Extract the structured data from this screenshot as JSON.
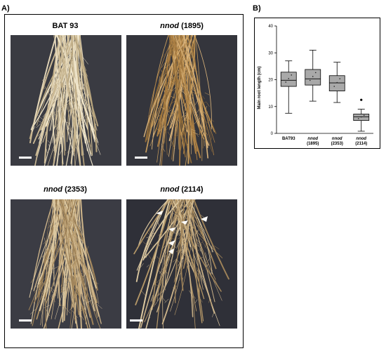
{
  "figure": {
    "panel_a_label": "A)",
    "panel_b_label": "B)"
  },
  "photos": [
    {
      "title_italic": "",
      "title_plain": "BAT 93"
    },
    {
      "title_italic": "nnod",
      "title_plain": " (1895)"
    },
    {
      "title_italic": "nnod",
      "title_plain": " (2353)"
    },
    {
      "title_italic": "nnod",
      "title_plain": " (2114)"
    }
  ],
  "colors": {
    "photo_background": "#3a3b42",
    "root_light": "#d8c8a4",
    "root_dark": "#b8925a",
    "box_fill": "#a9a9a9"
  },
  "chart_data": {
    "type": "boxplot",
    "ylabel": "Main root length (cm)",
    "ylim": [
      0,
      40
    ],
    "yticks": [
      0,
      10,
      20,
      30,
      40
    ],
    "categories": [
      {
        "line1": "BAT93",
        "line1_italic": false,
        "line2": ""
      },
      {
        "line1": "nnod",
        "line1_italic": true,
        "line2": "(1895)"
      },
      {
        "line1": "nnod",
        "line1_italic": true,
        "line2": "(2353)"
      },
      {
        "line1": "nnod",
        "line1_italic": true,
        "line2": "(2114)"
      }
    ],
    "boxes": [
      {
        "min": 7.5,
        "q1": 17.5,
        "median": 19.8,
        "q3": 22.8,
        "max": 27,
        "outliers": []
      },
      {
        "min": 12,
        "q1": 18,
        "median": 20.3,
        "q3": 23.8,
        "max": 31,
        "outliers": []
      },
      {
        "min": 11.5,
        "q1": 15.8,
        "median": 18.8,
        "q3": 21.5,
        "max": 26.5,
        "outliers": []
      },
      {
        "min": 0.8,
        "q1": 4.8,
        "median": 6.2,
        "q3": 7.2,
        "max": 9,
        "outliers": [
          12.5
        ]
      }
    ]
  }
}
